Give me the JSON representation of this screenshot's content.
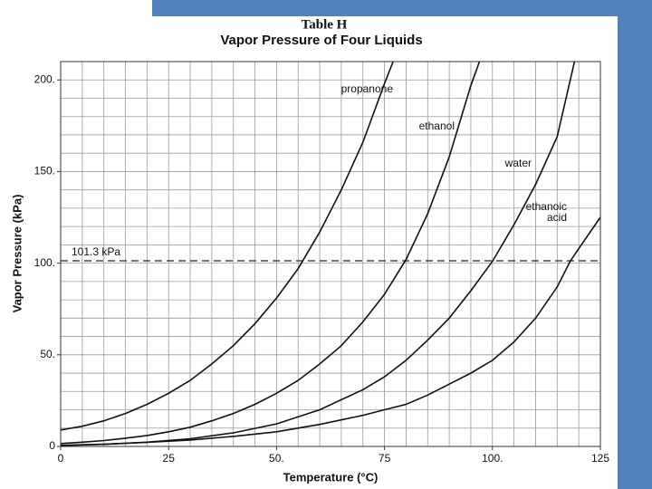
{
  "chart_data": {
    "type": "line",
    "title": "Table H",
    "subtitle": "Vapor Pressure of Four Liquids",
    "x_label": "Temperature (°C)",
    "y_label": "Vapor Pressure (kPa)",
    "xlim": [
      0,
      125
    ],
    "ylim": [
      0,
      210
    ],
    "xticks": [
      0,
      25,
      {
        "value": 50,
        "label": "50."
      },
      75,
      {
        "value": 100,
        "label": "100."
      },
      125
    ],
    "yticks": [
      0,
      {
        "value": 50,
        "label": "50."
      },
      {
        "value": 100,
        "label": "100."
      },
      {
        "value": 150,
        "label": "150."
      },
      {
        "value": 200,
        "label": "200."
      }
    ],
    "grid": true,
    "grid_step": {
      "x": 5,
      "y": 10
    },
    "reference_line": {
      "value": 101.3,
      "label": "101.3 kPa"
    },
    "series": [
      {
        "name": "propanone",
        "color": "#111111",
        "x": [
          0,
          5,
          10,
          15,
          20,
          25,
          30,
          35,
          40,
          45,
          50,
          55,
          60,
          65,
          70,
          75,
          77
        ],
        "values": [
          9,
          11,
          14,
          18,
          23,
          29,
          36,
          45,
          55,
          67,
          81,
          97,
          117,
          140,
          166,
          198,
          210
        ]
      },
      {
        "name": "ethanol",
        "color": "#111111",
        "x": [
          0,
          5,
          10,
          15,
          20,
          25,
          30,
          35,
          40,
          45,
          50,
          55,
          60,
          65,
          70,
          75,
          80,
          85,
          90,
          95,
          97
        ],
        "values": [
          1.6,
          2.3,
          3.2,
          4.5,
          6,
          8,
          10.5,
          14,
          18,
          23,
          29,
          36,
          45,
          55,
          68,
          83,
          102,
          127,
          158,
          197,
          210
        ]
      },
      {
        "name": "water",
        "color": "#111111",
        "x": [
          0,
          10,
          20,
          30,
          40,
          50,
          60,
          70,
          75,
          80,
          85,
          90,
          95,
          100,
          105,
          110,
          115,
          119
        ],
        "values": [
          0.6,
          1.2,
          2.3,
          4.2,
          7.4,
          12.3,
          20,
          31,
          38,
          47,
          58,
          70,
          85,
          101,
          121,
          143,
          169,
          210
        ]
      },
      {
        "name": "ethanoic acid",
        "color": "#111111",
        "x": [
          0,
          10,
          20,
          30,
          40,
          50,
          60,
          70,
          75,
          80,
          85,
          90,
          95,
          100,
          105,
          110,
          115,
          118,
          120,
          125
        ],
        "values": [
          0.5,
          1.2,
          2.2,
          3.5,
          5.5,
          8,
          12,
          17,
          20,
          23,
          28,
          34,
          40,
          47,
          57,
          70,
          87,
          101,
          108,
          125
        ]
      }
    ]
  }
}
